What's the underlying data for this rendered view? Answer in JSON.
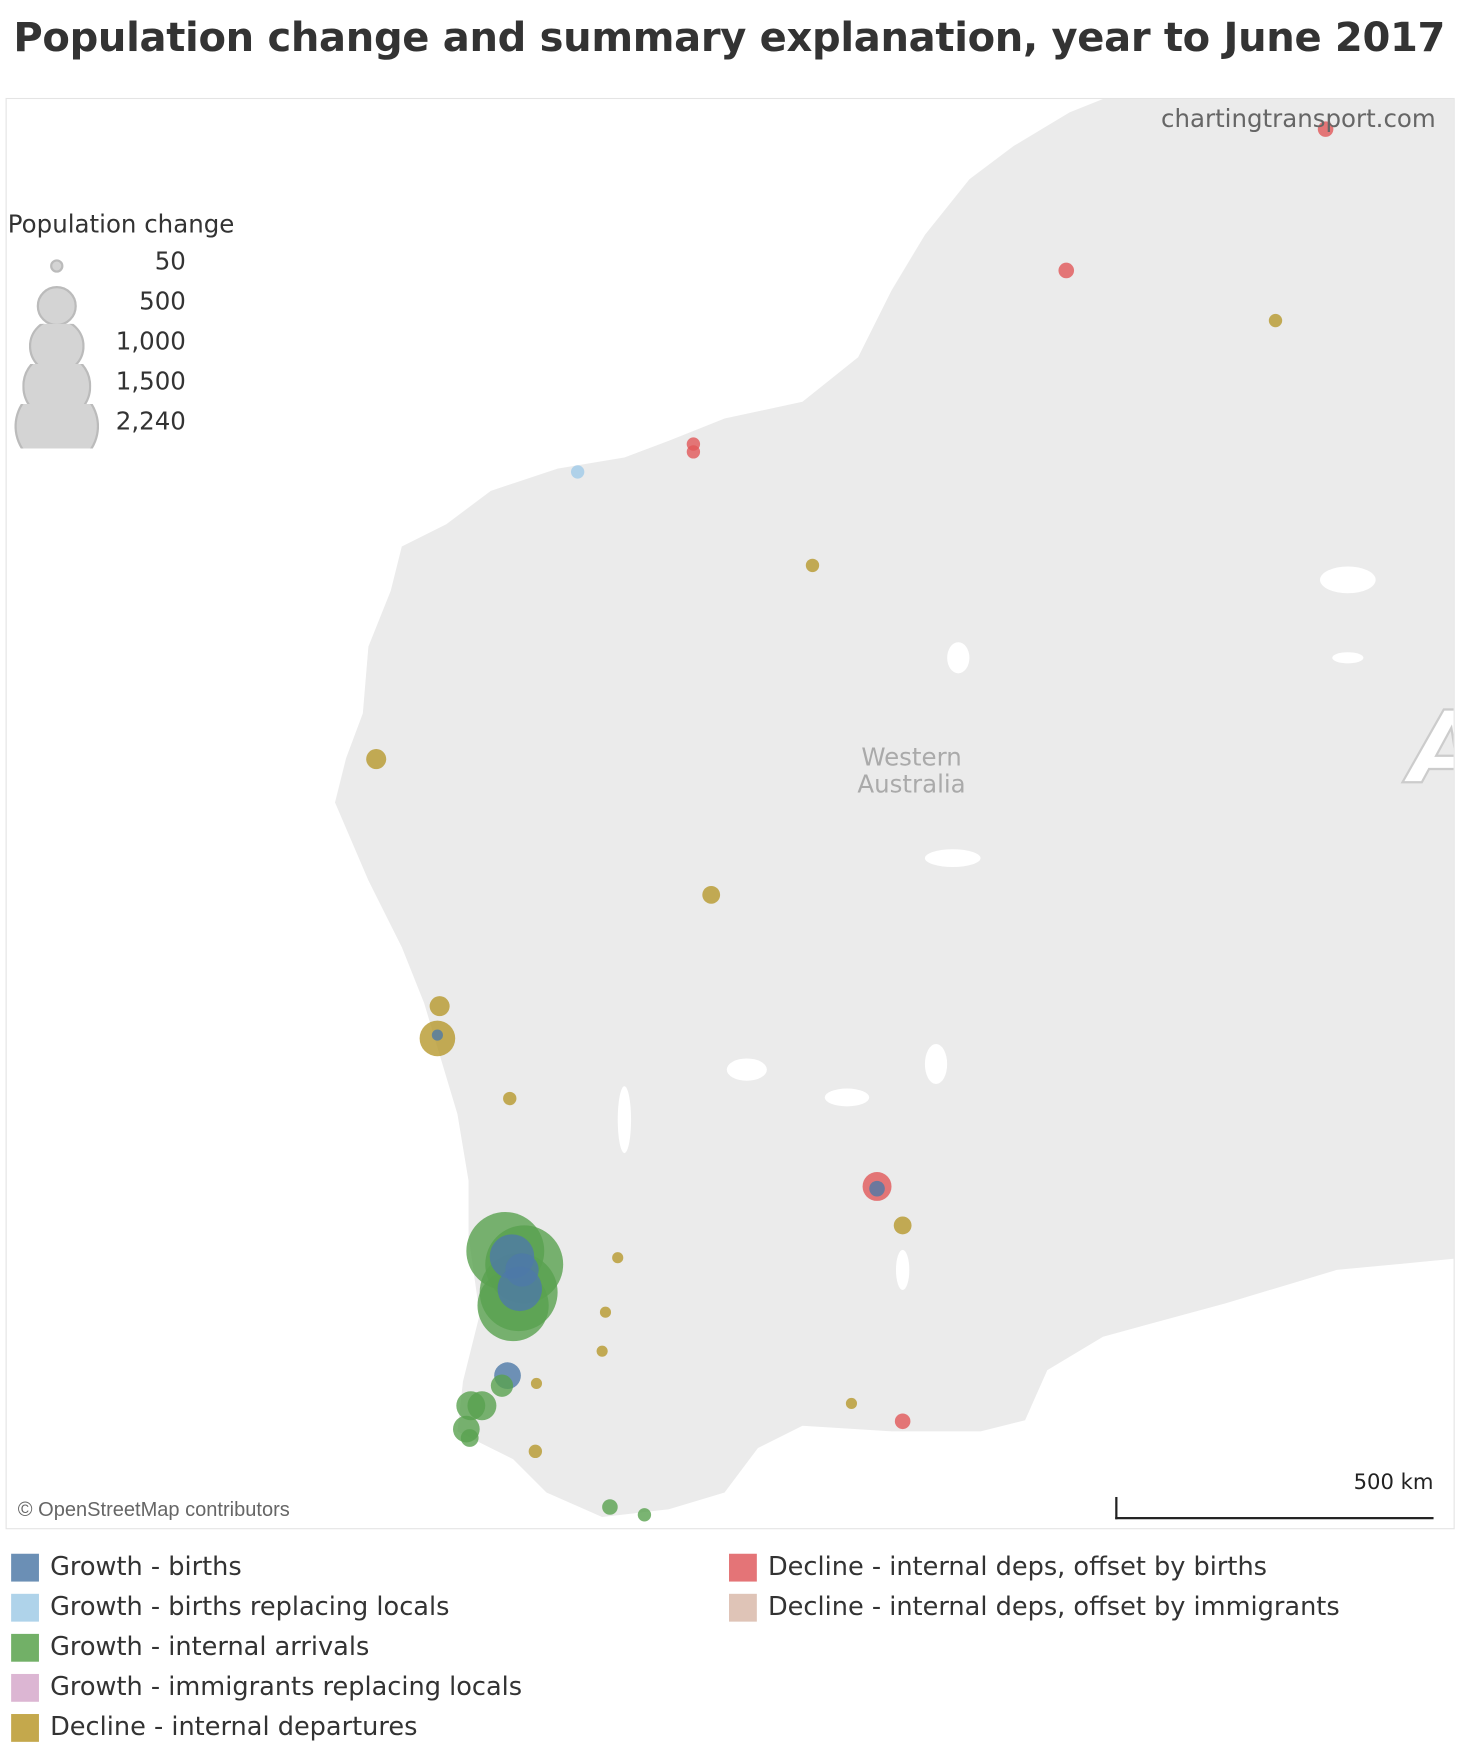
{
  "title": "Population change and summary explanation, year to June 2017",
  "credit": "chartingtransport.com",
  "attribution": "© OpenStreetMap contributors",
  "scale_label": "500 km",
  "region_label_line1": "Western",
  "region_label_line2": "Australia",
  "edge_label": "A",
  "size_legend": {
    "title": "Population change",
    "values": [
      "50",
      "500",
      "1,000",
      "1,500",
      "2,240"
    ]
  },
  "categories": [
    {
      "label": "Growth - births",
      "color": "#6b8fb5"
    },
    {
      "label": "Growth - births replacing locals",
      "color": "#afd3ea"
    },
    {
      "label": "Growth - internal arrivals",
      "color": "#72b067"
    },
    {
      "label": "Growth - immigrants replacing locals",
      "color": "#dcb6d3"
    },
    {
      "label": "Decline - internal departures",
      "color": "#c4a84c"
    },
    {
      "label": "Decline - internal deps, offset by births",
      "color": "#e47477"
    },
    {
      "label": "Decline - internal deps, offset by immigrants",
      "color": "#dfc4b7"
    }
  ],
  "map_colors": {
    "land": "#ebebeb",
    "water": "#ffffff"
  }
}
